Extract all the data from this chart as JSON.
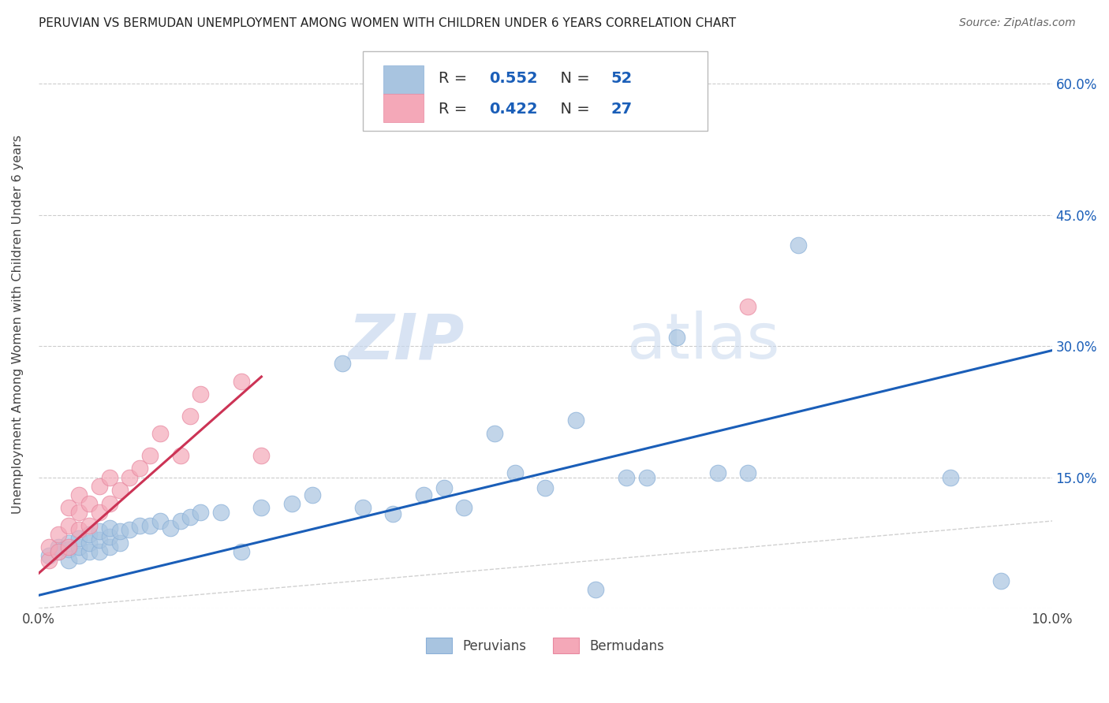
{
  "title": "PERUVIAN VS BERMUDAN UNEMPLOYMENT AMONG WOMEN WITH CHILDREN UNDER 6 YEARS CORRELATION CHART",
  "source": "Source: ZipAtlas.com",
  "ylabel": "Unemployment Among Women with Children Under 6 years",
  "xlim": [
    0.0,
    0.1
  ],
  "ylim": [
    0.0,
    0.65
  ],
  "yticks": [
    0.0,
    0.15,
    0.3,
    0.45,
    0.6
  ],
  "ytick_labels": [
    "",
    "15.0%",
    "30.0%",
    "45.0%",
    "60.0%"
  ],
  "xticks": [
    0.0,
    0.02,
    0.04,
    0.06,
    0.08,
    0.1
  ],
  "xtick_labels": [
    "0.0%",
    "",
    "",
    "",
    "",
    "10.0%"
  ],
  "peruvian_R": "0.552",
  "peruvian_N": "52",
  "bermudan_R": "0.422",
  "bermudan_N": "27",
  "peruvian_color": "#a8c4e0",
  "bermudan_color": "#f4a8b8",
  "peruvian_line_color": "#1a5eb8",
  "bermudan_line_color": "#cc3355",
  "diagonal_color": "#d0d0d0",
  "background_color": "#ffffff",
  "watermark_zip": "ZIP",
  "watermark_atlas": "atlas",
  "legend_peruvian": "Peruvians",
  "legend_bermudan": "Bermudans",
  "peruvian_scatter_x": [
    0.001,
    0.002,
    0.002,
    0.003,
    0.003,
    0.003,
    0.004,
    0.004,
    0.004,
    0.005,
    0.005,
    0.005,
    0.006,
    0.006,
    0.006,
    0.007,
    0.007,
    0.007,
    0.008,
    0.008,
    0.009,
    0.01,
    0.011,
    0.012,
    0.013,
    0.014,
    0.015,
    0.016,
    0.018,
    0.02,
    0.022,
    0.025,
    0.027,
    0.03,
    0.032,
    0.035,
    0.038,
    0.04,
    0.042,
    0.045,
    0.047,
    0.05,
    0.053,
    0.055,
    0.058,
    0.06,
    0.063,
    0.067,
    0.07,
    0.075,
    0.09,
    0.095
  ],
  "peruvian_scatter_y": [
    0.06,
    0.065,
    0.07,
    0.055,
    0.068,
    0.075,
    0.06,
    0.07,
    0.08,
    0.065,
    0.075,
    0.085,
    0.065,
    0.078,
    0.088,
    0.07,
    0.082,
    0.092,
    0.075,
    0.088,
    0.09,
    0.095,
    0.095,
    0.1,
    0.092,
    0.1,
    0.105,
    0.11,
    0.11,
    0.065,
    0.115,
    0.12,
    0.13,
    0.28,
    0.115,
    0.108,
    0.13,
    0.138,
    0.115,
    0.2,
    0.155,
    0.138,
    0.215,
    0.022,
    0.15,
    0.15,
    0.31,
    0.155,
    0.155,
    0.415,
    0.15,
    0.032
  ],
  "bermudan_scatter_x": [
    0.001,
    0.001,
    0.002,
    0.002,
    0.003,
    0.003,
    0.003,
    0.004,
    0.004,
    0.004,
    0.005,
    0.005,
    0.006,
    0.006,
    0.007,
    0.007,
    0.008,
    0.009,
    0.01,
    0.011,
    0.012,
    0.014,
    0.015,
    0.016,
    0.02,
    0.022,
    0.07
  ],
  "bermudan_scatter_y": [
    0.055,
    0.07,
    0.065,
    0.085,
    0.07,
    0.095,
    0.115,
    0.09,
    0.11,
    0.13,
    0.095,
    0.12,
    0.11,
    0.14,
    0.12,
    0.15,
    0.135,
    0.15,
    0.16,
    0.175,
    0.2,
    0.175,
    0.22,
    0.245,
    0.26,
    0.175,
    0.345
  ],
  "peruvian_trend_x": [
    0.0,
    0.1
  ],
  "peruvian_trend_y": [
    0.015,
    0.295
  ],
  "bermudan_trend_x": [
    0.0,
    0.022
  ],
  "bermudan_trend_y": [
    0.04,
    0.265
  ]
}
